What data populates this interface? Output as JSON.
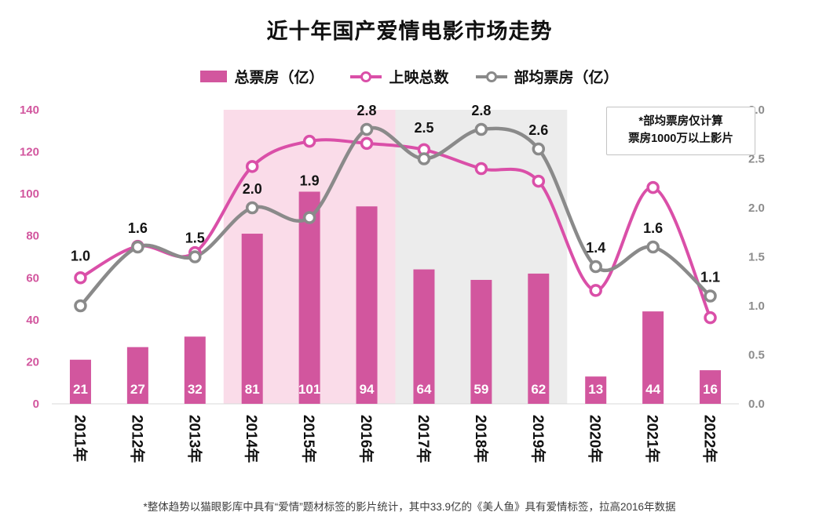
{
  "title": "近十年国产爱情电影市场走势",
  "legend": [
    {
      "label": "总票房（亿）",
      "swatch": "bar"
    },
    {
      "label": "上映总数",
      "swatch": "line-pink"
    },
    {
      "label": "部均票房（亿）",
      "swatch": "line-gray"
    }
  ],
  "annotation": {
    "line1": "*部均票房仅计算",
    "line2": "票房1000万以上影片"
  },
  "footnote": "*整体趋势以猫眼影库中具有“爱情”题材标签的影片统计，其中33.9亿的《美人鱼》具有爱情标签，拉高2016年数据",
  "colors": {
    "bar": "#d2569e",
    "line_pink": "#da4fa8",
    "line_gray": "#8a8a8a",
    "axis_left": "#d2569e",
    "axis_right": "#8c8c8c",
    "band_pink": "#fadce9",
    "band_gray": "#ececec",
    "bar_label": "#ffffff",
    "data_label": "#141414"
  },
  "chart_data": {
    "type": "combo",
    "title": "近十年国产爱情电影市场走势",
    "categories": [
      "2011年",
      "2012年",
      "2013年",
      "2014年",
      "2015年",
      "2016年",
      "2017年",
      "2018年",
      "2019年",
      "2020年",
      "2021年",
      "2022年"
    ],
    "series": [
      {
        "name": "总票房（亿）",
        "type": "bar",
        "axis": "left",
        "values": [
          21,
          27,
          32,
          81,
          101,
          94,
          64,
          59,
          62,
          13,
          44,
          16
        ]
      },
      {
        "name": "上映总数",
        "type": "line",
        "axis": "left",
        "values": [
          60,
          75,
          72,
          113,
          125,
          124,
          121,
          112,
          106,
          54,
          103,
          41
        ]
      },
      {
        "name": "部均票房（亿）",
        "type": "line",
        "axis": "right",
        "values": [
          1.0,
          1.6,
          1.5,
          2.0,
          1.9,
          2.8,
          2.5,
          2.8,
          2.6,
          1.4,
          1.6,
          1.1
        ]
      }
    ],
    "left_axis": {
      "min": 0,
      "max": 140,
      "ticks": [
        0,
        20,
        40,
        60,
        80,
        100,
        120,
        140
      ]
    },
    "right_axis": {
      "min": 0,
      "max": 3.0,
      "ticks": [
        0.0,
        0.5,
        1.0,
        1.5,
        2.0,
        2.5,
        3.0
      ]
    },
    "bands": [
      {
        "from": 3,
        "to": 5,
        "color": "#fadce9"
      },
      {
        "from": 6,
        "to": 8,
        "color": "#ececec"
      }
    ],
    "grid": false,
    "legend_position": "top"
  }
}
